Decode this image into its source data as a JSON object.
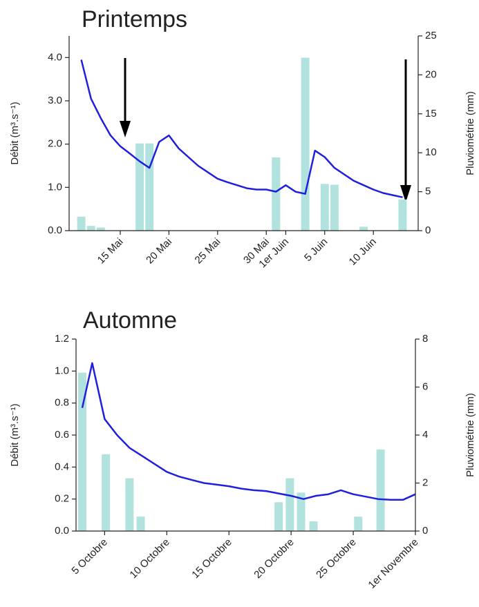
{
  "chart_data": [
    {
      "type": "combo",
      "title": "Printemps",
      "ylabel": "Débit (m³.s⁻¹)",
      "y2label": "Pluviométrie (mm)",
      "xlim": [
        9.75,
        45.6
      ],
      "ylim": [
        0,
        4.5
      ],
      "y2lim": [
        0,
        25
      ],
      "xticks": [
        {
          "value": 15,
          "label": "15 Mai"
        },
        {
          "value": 20,
          "label": "20 Mai"
        },
        {
          "value": 25,
          "label": "25 Mai"
        },
        {
          "value": 30,
          "label": "30 Mai"
        },
        {
          "value": 32,
          "label": "1er Juin"
        },
        {
          "value": 36,
          "label": "5 Juin"
        },
        {
          "value": 41,
          "label": "10 Juin"
        }
      ],
      "yticks": [
        {
          "value": 0,
          "label": "0.0"
        },
        {
          "value": 1,
          "label": "1.0"
        },
        {
          "value": 2,
          "label": "2.0"
        },
        {
          "value": 3,
          "label": "3.0"
        },
        {
          "value": 4,
          "label": "4.0"
        }
      ],
      "y2ticks": [
        0,
        5,
        10,
        15,
        20,
        25
      ],
      "series": [
        {
          "type": "bar",
          "axis": "y2",
          "color": "#b2e2de",
          "x": [
            11,
            12,
            13,
            17,
            18,
            31,
            34,
            36,
            37,
            40,
            44
          ],
          "values": [
            1.8,
            0.6,
            0.4,
            11.2,
            11.2,
            9.4,
            22.2,
            6.0,
            5.9,
            0.5,
            4.0
          ]
        },
        {
          "type": "line",
          "color": "#1f1fdd",
          "x": [
            11,
            12,
            13,
            14,
            15,
            16,
            17,
            18,
            19,
            20,
            21,
            22,
            23,
            24,
            25,
            26,
            27,
            28,
            29,
            30,
            31,
            32,
            33,
            34,
            35,
            36,
            37,
            38,
            39,
            40,
            41,
            42,
            43,
            44
          ],
          "values": [
            3.95,
            3.05,
            2.6,
            2.2,
            1.95,
            1.78,
            1.6,
            1.45,
            2.05,
            2.2,
            1.9,
            1.7,
            1.5,
            1.35,
            1.2,
            1.12,
            1.05,
            0.98,
            0.95,
            0.95,
            0.9,
            1.05,
            0.9,
            0.85,
            1.85,
            1.7,
            1.45,
            1.3,
            1.15,
            1.05,
            0.95,
            0.87,
            0.82,
            0.77
          ]
        }
      ]
    },
    {
      "type": "combo",
      "title": "Automne",
      "ylabel": "Débit (m³.s⁻¹)",
      "y2label": "Pluviométrie (mm)",
      "xlim": [
        2.7,
        30
      ],
      "ylim": [
        0,
        1.2
      ],
      "y2lim": [
        0,
        8
      ],
      "xticks": [
        {
          "value": 5,
          "label": "5 Octobre"
        },
        {
          "value": 10,
          "label": "10 Octobre"
        },
        {
          "value": 15,
          "label": "15 Octobre"
        },
        {
          "value": 20,
          "label": "20 Octobre"
        },
        {
          "value": 25,
          "label": "25 Octobre"
        },
        {
          "value": 30,
          "label": "1er Novembre"
        }
      ],
      "yticks": [
        {
          "value": 0,
          "label": "0.0"
        },
        0.2,
        0.4,
        0.6,
        0.8,
        {
          "value": 1,
          "label": "1.0"
        },
        1.2
      ],
      "y2ticks": [
        0,
        2,
        4,
        6,
        8
      ],
      "series": [
        {
          "type": "bar",
          "axis": "y2",
          "color": "#b2e2de",
          "x": [
            3.2,
            5.1,
            7,
            7.9,
            19,
            19.9,
            20.8,
            21.8,
            25.4,
            27.2
          ],
          "values": [
            6.6,
            3.2,
            2.2,
            0.6,
            1.2,
            2.2,
            1.6,
            0.4,
            0.6,
            3.4
          ]
        },
        {
          "type": "line",
          "color": "#1f1fdd",
          "x": [
            3.2,
            4,
            5,
            6,
            7,
            8,
            9,
            10,
            11,
            12,
            13,
            14,
            15,
            16,
            17,
            18,
            19,
            20,
            21,
            22,
            23,
            24,
            25,
            26,
            27,
            28,
            29,
            30
          ],
          "values": [
            0.77,
            1.05,
            0.7,
            0.6,
            0.52,
            0.47,
            0.42,
            0.37,
            0.34,
            0.32,
            0.3,
            0.29,
            0.28,
            0.265,
            0.255,
            0.25,
            0.235,
            0.22,
            0.2,
            0.22,
            0.23,
            0.255,
            0.23,
            0.215,
            0.2,
            0.195,
            0.195,
            0.23
          ]
        }
      ]
    }
  ]
}
